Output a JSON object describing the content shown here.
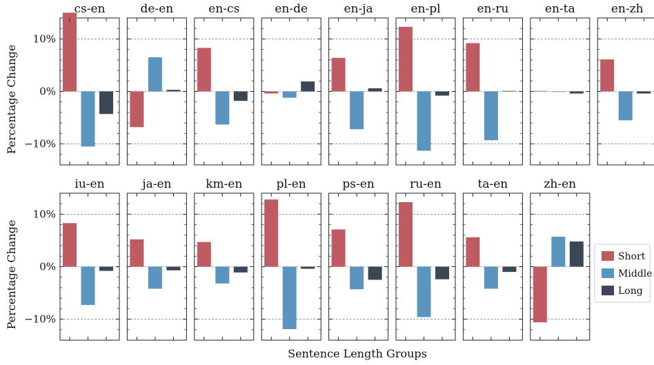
{
  "chart_data": {
    "type": "bar",
    "xlabel": "Sentence Length Groups",
    "ylabel": "Percentage Change",
    "ylim": [
      -14,
      14
    ],
    "yticks": [
      -10,
      0,
      10
    ],
    "ytick_labels": [
      "−10%",
      "0%",
      "10%"
    ],
    "grid": "horizontal dashed at −10%, 0%, 10%",
    "legend_position": "right of bottom row",
    "colors": {
      "Short": "#bf5b62",
      "Middle": "#5b94bf",
      "Long": "#3b4754"
    },
    "series_names": [
      "Short",
      "Middle",
      "Long"
    ],
    "panels": [
      {
        "title": "cs-en",
        "values": [
          15.0,
          -10.5,
          -4.3
        ]
      },
      {
        "title": "de-en",
        "values": [
          -6.8,
          6.5,
          0.3
        ]
      },
      {
        "title": "en-cs",
        "values": [
          8.3,
          -6.3,
          -1.8
        ]
      },
      {
        "title": "en-de",
        "values": [
          -0.4,
          -1.2,
          1.9
        ]
      },
      {
        "title": "en-ja",
        "values": [
          6.4,
          -7.2,
          0.6
        ]
      },
      {
        "title": "en-pl",
        "values": [
          12.3,
          -11.3,
          -0.8
        ]
      },
      {
        "title": "en-ru",
        "values": [
          9.2,
          -9.3,
          0.1
        ]
      },
      {
        "title": "en-ta",
        "values": [
          0.1,
          -0.1,
          -0.4
        ]
      },
      {
        "title": "en-zh",
        "values": [
          6.1,
          -5.5,
          -0.4
        ]
      },
      {
        "title": "iu-en",
        "values": [
          8.3,
          -7.3,
          -0.8
        ]
      },
      {
        "title": "ja-en",
        "values": [
          5.2,
          -4.2,
          -0.7
        ]
      },
      {
        "title": "km-en",
        "values": [
          4.7,
          -3.2,
          -1.1
        ]
      },
      {
        "title": "pl-en",
        "values": [
          12.8,
          -11.9,
          -0.4
        ]
      },
      {
        "title": "ps-en",
        "values": [
          7.1,
          -4.3,
          -2.5
        ]
      },
      {
        "title": "ru-en",
        "values": [
          12.3,
          -9.6,
          -2.4
        ]
      },
      {
        "title": "ta-en",
        "values": [
          5.6,
          -4.2,
          -1.0
        ]
      },
      {
        "title": "zh-en",
        "values": [
          -10.6,
          5.7,
          4.8
        ]
      }
    ]
  }
}
